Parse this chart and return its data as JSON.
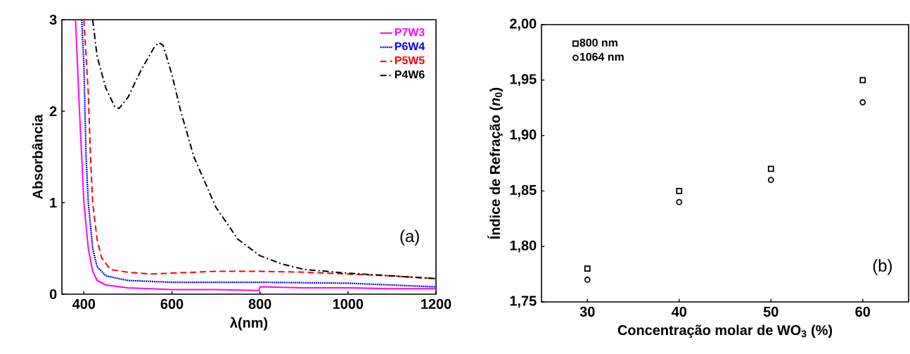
{
  "chart_data": [
    {
      "type": "line",
      "xlabel": "λ(nm)",
      "ylabel": "Absorbância",
      "xlim": [
        350,
        1200
      ],
      "ylim": [
        0,
        3
      ],
      "xticks": [
        400,
        600,
        800,
        1000,
        1200
      ],
      "yticks": [
        0,
        1,
        2,
        3
      ],
      "legend": "top right",
      "grid": false,
      "annotations": [
        "(a)"
      ],
      "series": [
        {
          "name": "P7W3",
          "color": "#ff00ff",
          "line_style": "solid",
          "x": [
            381,
            390,
            400,
            410,
            420,
            430,
            450,
            500,
            600,
            700,
            798,
            800,
            900,
            1000,
            1100,
            1200
          ],
          "values": [
            3,
            2.0,
            1.0,
            0.5,
            0.25,
            0.15,
            0.1,
            0.07,
            0.05,
            0.05,
            0.04,
            0.08,
            0.07,
            0.07,
            0.06,
            0.06
          ]
        },
        {
          "name": "P6W4",
          "color": "#0000ff",
          "line_style": "dotted",
          "x": [
            395,
            400,
            405,
            410,
            420,
            430,
            450,
            500,
            600,
            800,
            1000,
            1100,
            1200
          ],
          "values": [
            3,
            2.5,
            1.5,
            1.0,
            0.5,
            0.3,
            0.2,
            0.15,
            0.13,
            0.13,
            0.12,
            0.1,
            0.08
          ]
        },
        {
          "name": "P5W5",
          "color": "#ff0000",
          "line_style": "dashed",
          "x": [
            400,
            410,
            415,
            420,
            430,
            440,
            460,
            500,
            550,
            600,
            700,
            800,
            900,
            1000,
            1100,
            1200
          ],
          "values": [
            3,
            2.2,
            1.5,
            1.0,
            0.6,
            0.4,
            0.27,
            0.24,
            0.22,
            0.23,
            0.25,
            0.25,
            0.24,
            0.22,
            0.2,
            0.17
          ]
        },
        {
          "name": "P4W6",
          "color": "#000000",
          "line_style": "dashdot",
          "x": [
            420,
            430,
            450,
            470,
            480,
            500,
            530,
            560,
            570,
            580,
            600,
            620,
            650,
            700,
            750,
            800,
            850,
            900,
            1000,
            1100,
            1200
          ],
          "values": [
            3,
            2.6,
            2.25,
            2.05,
            2.03,
            2.15,
            2.45,
            2.7,
            2.75,
            2.72,
            2.4,
            2.0,
            1.5,
            0.95,
            0.6,
            0.42,
            0.33,
            0.27,
            0.23,
            0.2,
            0.17
          ]
        }
      ]
    },
    {
      "type": "scatter",
      "xlabel": "Concentração molar de WO$_{3}$ (%)",
      "ylabel": "Índice de Refração (*n*$_{0}$)",
      "xlim": [
        25,
        65
      ],
      "ylim": [
        1.75,
        2.0
      ],
      "xticks": [
        30,
        40,
        50,
        60
      ],
      "yticks": [
        {
          "value": 1.75,
          "label": "1,75"
        },
        {
          "value": 1.8,
          "label": "1,80"
        },
        {
          "value": 1.85,
          "label": "1,85"
        },
        {
          "value": 1.9,
          "label": "1,90"
        },
        {
          "value": 1.95,
          "label": "1,95"
        },
        {
          "value": 2.0,
          "label": "2,00"
        }
      ],
      "legend": "top left",
      "grid": false,
      "annotations": [
        "(b)"
      ],
      "series": [
        {
          "name": "800 nm",
          "color": "#000000",
          "marker": "square",
          "x": [
            30,
            40,
            50,
            60
          ],
          "values": [
            1.78,
            1.85,
            1.87,
            1.95
          ]
        },
        {
          "name": "1064 nm",
          "color": "#000000",
          "marker": "circle",
          "x": [
            30,
            40,
            50,
            60
          ],
          "values": [
            1.77,
            1.84,
            1.86,
            1.93
          ]
        }
      ]
    }
  ]
}
